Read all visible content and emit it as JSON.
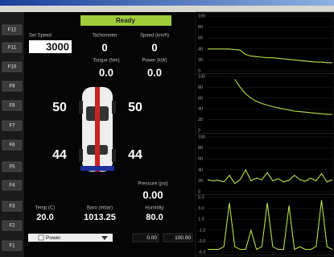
{
  "function_keys": [
    "F12",
    "F11",
    "F10",
    "F9",
    "F8",
    "F7",
    "F6",
    "F5",
    "F4",
    "F3",
    "F2",
    "F1"
  ],
  "status": "Ready",
  "set_speed": {
    "label": "Set Speed",
    "value": "3000"
  },
  "readouts": [
    {
      "label": "Tachometer",
      "value": "0"
    },
    {
      "label": "Speed (km/h)",
      "value": "0"
    },
    {
      "label": "Torque (Nm)",
      "value": "0.0"
    },
    {
      "label": "Power (kW)",
      "value": "0.0"
    },
    {
      "label": "Pressure (psi)",
      "value": "0.00"
    },
    {
      "label": "Temp (C)",
      "value": "20.0"
    },
    {
      "label": "Baro (mbar)",
      "value": "1013.25"
    },
    {
      "label": "Humidity",
      "value": "80.0"
    }
  ],
  "tires": [
    "50",
    "50",
    "44",
    "44"
  ],
  "channel": {
    "name": "Power",
    "min": "0.00",
    "max": "100.00"
  },
  "graphs": [
    {
      "type": "line",
      "color": "#b8e04a",
      "ylim": [
        0,
        100
      ],
      "yticks": [
        0,
        20,
        40,
        60,
        80,
        100
      ],
      "values": [
        40,
        40,
        40,
        40,
        40,
        39,
        38,
        30,
        27,
        26,
        25,
        24,
        24,
        23,
        22,
        21,
        20,
        19,
        18,
        17,
        16,
        16,
        15,
        15
      ]
    },
    {
      "type": "line",
      "color": "#b8e04a",
      "ylim": [
        0,
        100
      ],
      "yticks": [
        0,
        20,
        40,
        60,
        80,
        100
      ],
      "values": [
        null,
        null,
        null,
        null,
        null,
        95,
        80,
        68,
        60,
        54,
        50,
        47,
        44,
        42,
        40,
        38,
        36,
        35,
        34,
        33,
        32,
        31,
        30,
        30
      ]
    },
    {
      "type": "line",
      "color": "#b8e04a",
      "ylim": [
        0,
        100
      ],
      "yticks": [
        0,
        20,
        40,
        60,
        80,
        100
      ],
      "values": [
        22,
        20,
        21,
        18,
        30,
        15,
        22,
        40,
        20,
        25,
        22,
        35,
        20,
        24,
        18,
        21,
        30,
        22,
        19,
        25,
        20,
        33,
        18,
        22
      ]
    },
    {
      "type": "line",
      "color": "#b8e04a",
      "ylim": [
        -5,
        5
      ],
      "yticks": [
        {
          "value": -5,
          "label": "-5.0"
        },
        {
          "value": -3,
          "label": "-3.0"
        },
        {
          "value": -1,
          "label": "-1.0"
        },
        {
          "value": 1,
          "label": "1.0"
        },
        {
          "value": 3,
          "label": "3.0"
        },
        {
          "value": 5,
          "label": "5.0"
        }
      ],
      "values": [
        -4.5,
        -4.5,
        -4.5,
        -4,
        4,
        -4,
        -4.5,
        -4.5,
        -1,
        -4.5,
        -4,
        4,
        -4,
        -4.5,
        -4.5,
        3.5,
        -4.5,
        -4,
        -4.5,
        -4.5,
        -4,
        4.5,
        -4,
        -4.5
      ]
    }
  ]
}
